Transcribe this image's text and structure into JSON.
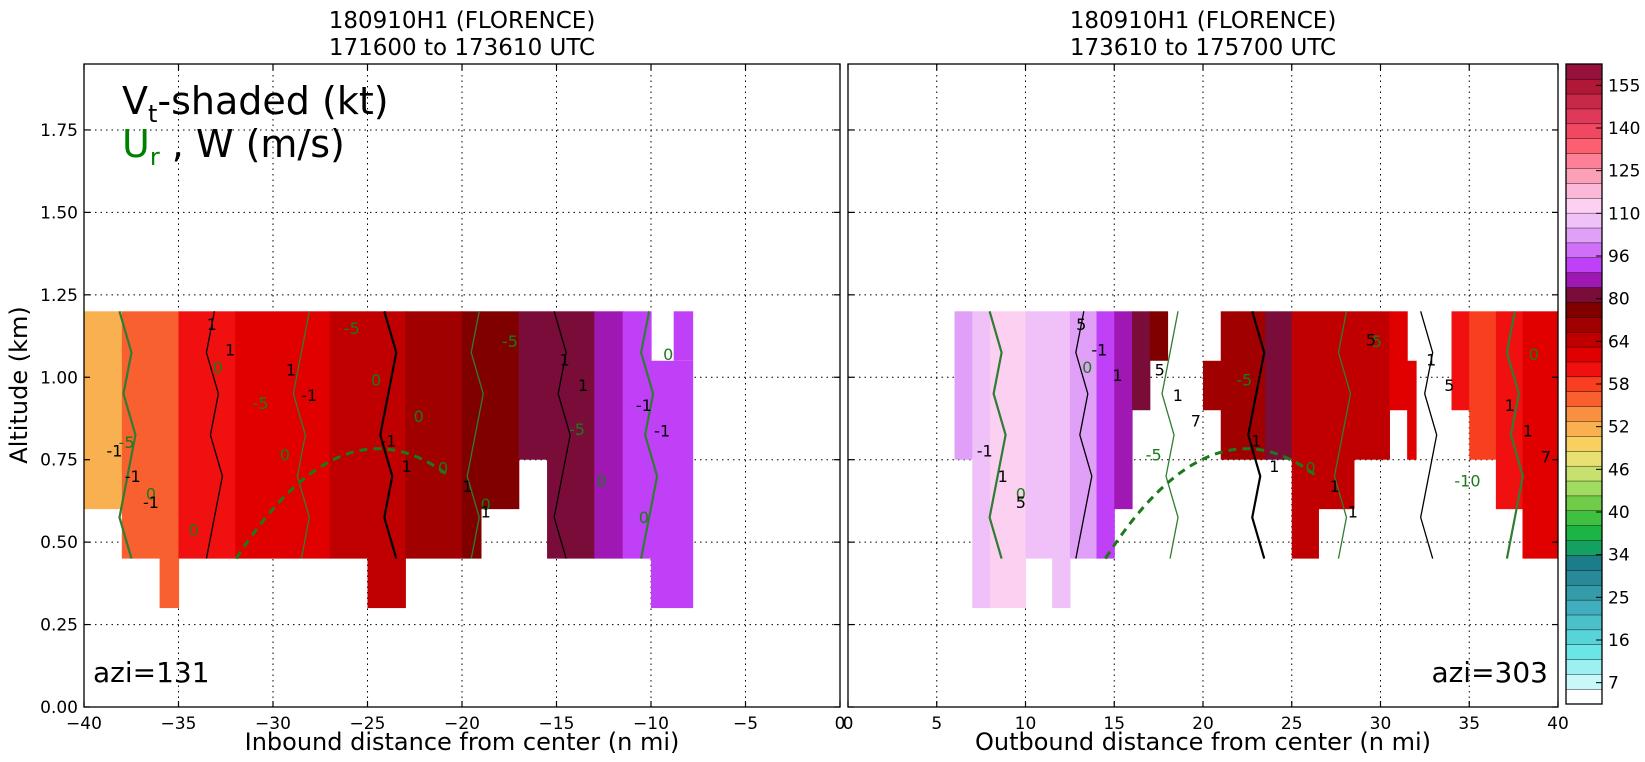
{
  "chart_data": [
    {
      "type": "heatmap",
      "panel": "left",
      "title_line1": "180910H1 (FLORENCE)",
      "title_line2": "171600 to 173610 UTC",
      "xlabel": "Inbound distance from center (n mi)",
      "ylabel": "Altitude (km)",
      "xlim": [
        -40,
        0
      ],
      "ylim": [
        0.0,
        1.95
      ],
      "xticks": [
        -40,
        -35,
        -30,
        -25,
        -20,
        -15,
        -10,
        -5,
        0
      ],
      "yticks": [
        0.0,
        0.25,
        0.5,
        0.75,
        1.0,
        1.25,
        1.5,
        1.75
      ],
      "xtick_labels": [
        "−40",
        "−35",
        "−30",
        "−25",
        "−20",
        "−15",
        "−10",
        "−5",
        "0"
      ],
      "ytick_labels": [
        "0.00",
        "0.25",
        "0.50",
        "0.75",
        "1.00",
        "1.25",
        "1.50",
        "1.75"
      ],
      "grid": true,
      "legend_main": "Vt-shaded (kt)",
      "legend_sub_ur": "Ur",
      "legend_sub_w": ", W (m/s)",
      "annotation": "azi=131",
      "vt_bands": [
        {
          "x0": -40,
          "x1": -38,
          "y0": 0.6,
          "y1": 1.2,
          "vt": 58
        },
        {
          "x0": -38,
          "x1": -36,
          "y0": 0.45,
          "y1": 1.2,
          "vt": 64
        },
        {
          "x0": -36,
          "x1": -35,
          "y0": 0.3,
          "y1": 1.2,
          "vt": 64
        },
        {
          "x0": -35,
          "x1": -32,
          "y0": 0.45,
          "y1": 1.2,
          "vt": 76
        },
        {
          "x0": -32,
          "x1": -27,
          "y0": 0.45,
          "y1": 1.2,
          "vt": 80
        },
        {
          "x0": -27,
          "x1": -25,
          "y0": 0.45,
          "y1": 1.2,
          "vt": 85
        },
        {
          "x0": -25,
          "x1": -23,
          "y0": 0.3,
          "y1": 1.2,
          "vt": 88
        },
        {
          "x0": -23,
          "x1": -20,
          "y0": 0.45,
          "y1": 1.2,
          "vt": 93
        },
        {
          "x0": -20,
          "x1": -19,
          "y0": 0.45,
          "y1": 1.2,
          "vt": 96
        },
        {
          "x0": -19,
          "x1": -17,
          "y0": 0.6,
          "y1": 1.2,
          "vt": 96
        },
        {
          "x0": -17,
          "x1": -15.5,
          "y0": 0.75,
          "y1": 1.2,
          "vt": 100
        },
        {
          "x0": -15.5,
          "x1": -13,
          "y0": 0.45,
          "y1": 1.2,
          "vt": 102
        },
        {
          "x0": -13,
          "x1": -11.5,
          "y0": 0.45,
          "y1": 1.2,
          "vt": 106
        },
        {
          "x0": -11.5,
          "x1": -10,
          "y0": 0.45,
          "y1": 1.2,
          "vt": 110
        },
        {
          "x0": -10,
          "x1": -9,
          "y0": 0.3,
          "y1": 1.05,
          "vt": 113
        },
        {
          "x0": -9,
          "x1": -7.8,
          "y0": 0.3,
          "y1": 1.05,
          "vt": 110
        },
        {
          "x0": -8.8,
          "x1": -7.8,
          "y0": 1.05,
          "y1": 1.2,
          "vt": 110
        }
      ],
      "ur_contour_labels": [
        "0",
        "0",
        "0",
        "0",
        "0",
        "0",
        "0",
        "-5",
        "-5",
        "-5",
        "-5",
        "0",
        "0",
        "0",
        "-5",
        "0"
      ],
      "w_contour_labels": [
        "-1",
        "1",
        "1",
        "-1",
        "1",
        "-1",
        "1",
        "-1",
        "-1",
        "1",
        "-1",
        "1",
        "1",
        "1",
        "-1"
      ]
    },
    {
      "type": "heatmap",
      "panel": "right",
      "title_line1": "180910H1 (FLORENCE)",
      "title_line2": "173610 to 175700 UTC",
      "xlabel": "Outbound distance from center (n mi)",
      "xlim": [
        0,
        40
      ],
      "ylim": [
        0.0,
        1.95
      ],
      "xticks": [
        0,
        5,
        10,
        15,
        20,
        25,
        30,
        35,
        40
      ],
      "xtick_labels": [
        "0",
        "5",
        "10",
        "15",
        "20",
        "25",
        "30",
        "35",
        "40"
      ],
      "grid": true,
      "annotation": "azi=303",
      "vt_bands": [
        {
          "x0": 6,
          "x1": 7,
          "y0": 0.75,
          "y1": 1.2,
          "vt": 122
        },
        {
          "x0": 7,
          "x1": 8,
          "y0": 0.3,
          "y1": 1.2,
          "vt": 128
        },
        {
          "x0": 8,
          "x1": 10,
          "y0": 0.3,
          "y1": 1.2,
          "vt": 131
        },
        {
          "x0": 10,
          "x1": 11.5,
          "y0": 0.45,
          "y1": 1.2,
          "vt": 128
        },
        {
          "x0": 11.5,
          "x1": 12.5,
          "y0": 0.3,
          "y1": 1.2,
          "vt": 125
        },
        {
          "x0": 12.5,
          "x1": 14,
          "y0": 0.45,
          "y1": 1.2,
          "vt": 120
        },
        {
          "x0": 14,
          "x1": 15,
          "y0": 0.45,
          "y1": 1.2,
          "vt": 113
        },
        {
          "x0": 15,
          "x1": 16,
          "y0": 0.6,
          "y1": 1.2,
          "vt": 106
        },
        {
          "x0": 16,
          "x1": 17,
          "y0": 0.9,
          "y1": 1.2,
          "vt": 100
        },
        {
          "x0": 17,
          "x1": 18,
          "y0": 1.05,
          "y1": 1.2,
          "vt": 96
        },
        {
          "x0": 20,
          "x1": 21,
          "y0": 0.9,
          "y1": 1.05,
          "vt": 93
        },
        {
          "x0": 21,
          "x1": 22,
          "y0": 0.75,
          "y1": 1.2,
          "vt": 90
        },
        {
          "x0": 22,
          "x1": 23.5,
          "y0": 0.75,
          "y1": 1.2,
          "vt": 93
        },
        {
          "x0": 23.5,
          "x1": 25,
          "y0": 0.75,
          "y1": 1.2,
          "vt": 100
        },
        {
          "x0": 25,
          "x1": 26.5,
          "y0": 0.45,
          "y1": 1.2,
          "vt": 88
        },
        {
          "x0": 26.5,
          "x1": 28.5,
          "y0": 0.6,
          "y1": 1.2,
          "vt": 85
        },
        {
          "x0": 28.5,
          "x1": 30.5,
          "y0": 0.75,
          "y1": 1.2,
          "vt": 85
        },
        {
          "x0": 30.5,
          "x1": 31.5,
          "y0": 0.9,
          "y1": 1.2,
          "vt": 82
        },
        {
          "x0": 31.5,
          "x1": 32,
          "y0": 0.75,
          "y1": 1.05,
          "vt": 82
        },
        {
          "x0": 34,
          "x1": 35,
          "y0": 0.9,
          "y1": 1.2,
          "vt": 76
        },
        {
          "x0": 35,
          "x1": 36.5,
          "y0": 0.75,
          "y1": 1.2,
          "vt": 74
        },
        {
          "x0": 36.5,
          "x1": 38,
          "y0": 0.6,
          "y1": 1.2,
          "vt": 76
        },
        {
          "x0": 38,
          "x1": 40,
          "y0": 0.45,
          "y1": 1.2,
          "vt": 80
        }
      ],
      "ur_contour_labels": [
        "0",
        "-5",
        "-10",
        "0",
        "0",
        "0",
        "-5",
        "5"
      ],
      "w_contour_labels": [
        "-1",
        "5",
        "1",
        "1",
        "5",
        "1",
        "1",
        "1",
        "1",
        "1",
        "1",
        "-1",
        "1",
        "5",
        "5",
        "7",
        "5",
        "7",
        "1"
      ]
    }
  ],
  "colorbar": {
    "tick_labels": [
      "7",
      "16",
      "25",
      "34",
      "40",
      "46",
      "52",
      "58",
      "64",
      "80",
      "96",
      "110",
      "125",
      "140",
      "155"
    ],
    "levels": [
      4,
      7,
      10,
      13,
      16,
      19,
      22,
      25,
      28,
      31,
      34,
      37,
      40,
      43,
      46,
      49,
      52,
      55,
      58,
      61,
      64,
      72,
      76,
      80,
      85,
      90,
      96,
      100,
      105,
      110,
      115,
      120,
      125,
      130,
      135,
      140,
      145,
      150,
      155,
      160
    ],
    "colors": [
      "#ffffff",
      "#c8f8f8",
      "#9cf0f0",
      "#6ae6e6",
      "#58d4d8",
      "#4cc0c8",
      "#40aebc",
      "#349ca8",
      "#288a98",
      "#1c7c88",
      "#14a060",
      "#1cb444",
      "#40c040",
      "#70cc48",
      "#a0dc60",
      "#c8e070",
      "#e8e070",
      "#f8d060",
      "#f8b050",
      "#f89040",
      "#f86030",
      "#f84020",
      "#f01010",
      "#e00000",
      "#c00000",
      "#a00000",
      "#800000",
      "#7a0c3a",
      "#a018b4",
      "#c040f8",
      "#d070f8",
      "#e0a0f8",
      "#f0c0f8",
      "#fcd0f0",
      "#fcb8d8",
      "#fca0b8",
      "#fc8098",
      "#fc6070",
      "#f04860",
      "#e03858",
      "#c82848",
      "#b01838",
      "#98103c"
    ]
  }
}
